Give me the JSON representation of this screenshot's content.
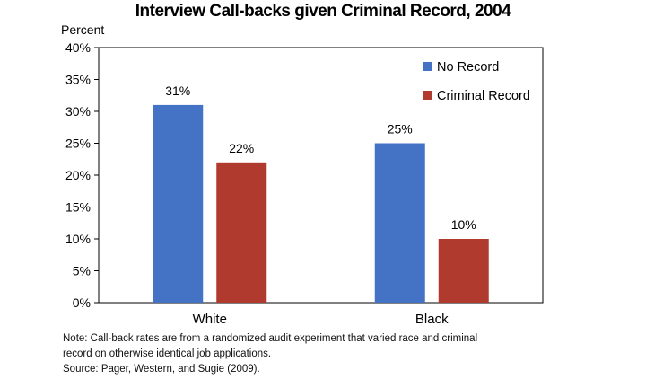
{
  "chart_data": {
    "type": "bar",
    "title": "Interview Call-backs given Criminal Record, 2004",
    "ylabel": "Percent",
    "xlabel": "",
    "categories": [
      "White",
      "Black"
    ],
    "series": [
      {
        "name": "No Record",
        "color": "#4472C4",
        "values": [
          31,
          25
        ],
        "labels": [
          "31%",
          "25%"
        ]
      },
      {
        "name": "Criminal Record",
        "color": "#B03A2E",
        "values": [
          22,
          10
        ],
        "labels": [
          "22%",
          "10%"
        ]
      }
    ],
    "ylim": [
      0,
      40
    ],
    "yticks": [
      0,
      5,
      10,
      15,
      20,
      25,
      30,
      35,
      40
    ],
    "ytick_labels": [
      "0%",
      "5%",
      "10%",
      "15%",
      "20%",
      "25%",
      "30%",
      "35%",
      "40%"
    ],
    "grid": false,
    "legend_position": "top-right"
  },
  "footnote": {
    "note_line1": "Note: Call-back rates are from a randomized audit experiment that varied race and criminal",
    "note_line2": "record on otherwise identical job applications.",
    "source": "Source: Pager, Western, and Sugie (2009)."
  }
}
